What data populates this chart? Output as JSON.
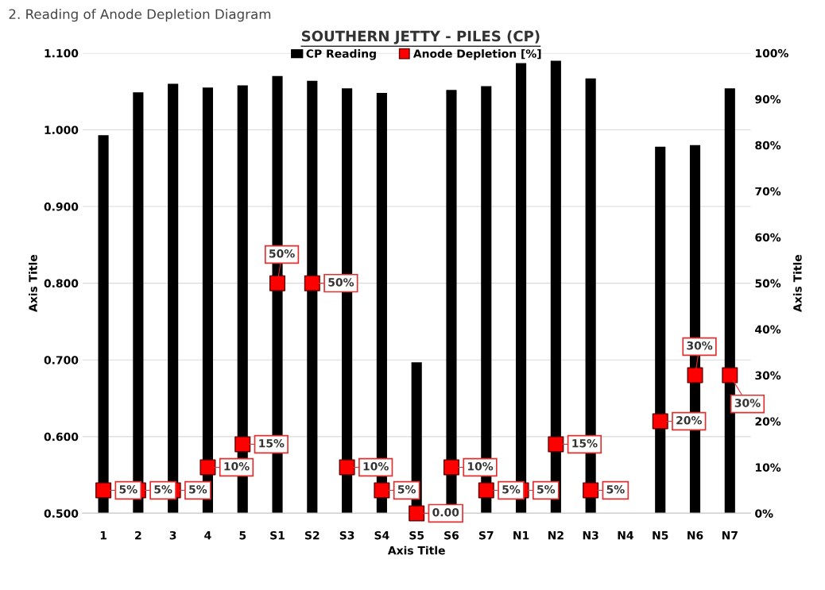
{
  "chart_data": {
    "type": "bar",
    "title": "SOUTHERN JETTY - PILES (CP)",
    "categories": [
      "1",
      "2",
      "3",
      "4",
      "5",
      "S1",
      "S2",
      "S3",
      "S4",
      "S5",
      "S6",
      "S7",
      "N1",
      "N2",
      "N3",
      "N4",
      "N5",
      "N6",
      "N7"
    ],
    "series": [
      {
        "name": "CP Reading",
        "color": "#000000",
        "values": [
          0.993,
          1.049,
          1.06,
          1.055,
          1.058,
          1.07,
          1.064,
          1.054,
          1.048,
          0.697,
          1.052,
          1.057,
          1.087,
          1.09,
          1.067,
          null,
          0.978,
          0.98,
          1.054
        ]
      },
      {
        "name": "Anode Depletion [%]",
        "type": "scatter",
        "axis": "y2",
        "color": "#ff0000",
        "marker": "square",
        "values": [
          5,
          5,
          5,
          10,
          15,
          50,
          50,
          10,
          5,
          0,
          10,
          5,
          5,
          15,
          5,
          null,
          20,
          30,
          30
        ],
        "value_labels": [
          "5%",
          "5%",
          "5%",
          "10%",
          "15%",
          "50%",
          "50%",
          "10%",
          "5%",
          "0.00",
          "10%",
          "5%",
          "5%",
          "15%",
          "5%",
          null,
          "20%",
          "30%",
          "30%"
        ]
      }
    ],
    "xlabel": "Axis Title",
    "ylabel": "Axis Title",
    "y2label": "Axis Title",
    "ylim": [
      0.5,
      1.1
    ],
    "yticks": [
      {
        "value": 0.5,
        "label": "0.500"
      },
      {
        "value": 0.6,
        "label": "0.600"
      },
      {
        "value": 0.7,
        "label": "0.700"
      },
      {
        "value": 0.8,
        "label": "0.800"
      },
      {
        "value": 0.9,
        "label": "0.900"
      },
      {
        "value": 1.0,
        "label": "1.000"
      },
      {
        "value": 1.1,
        "label": "1.100"
      }
    ],
    "y2lim": [
      0,
      100
    ],
    "y2ticks": [
      {
        "value": 0,
        "label": "0%"
      },
      {
        "value": 10,
        "label": "10%"
      },
      {
        "value": 20,
        "label": "20%"
      },
      {
        "value": 30,
        "label": "30%"
      },
      {
        "value": 40,
        "label": "40%"
      },
      {
        "value": 50,
        "label": "50%"
      },
      {
        "value": 60,
        "label": "60%"
      },
      {
        "value": 70,
        "label": "70%"
      },
      {
        "value": 80,
        "label": "80%"
      },
      {
        "value": 90,
        "label": "90%"
      },
      {
        "value": 100,
        "label": "100%"
      }
    ],
    "grid": "y",
    "legend": "top",
    "annotations": [
      "2. Reading of Anode Depletion Diagram"
    ]
  }
}
